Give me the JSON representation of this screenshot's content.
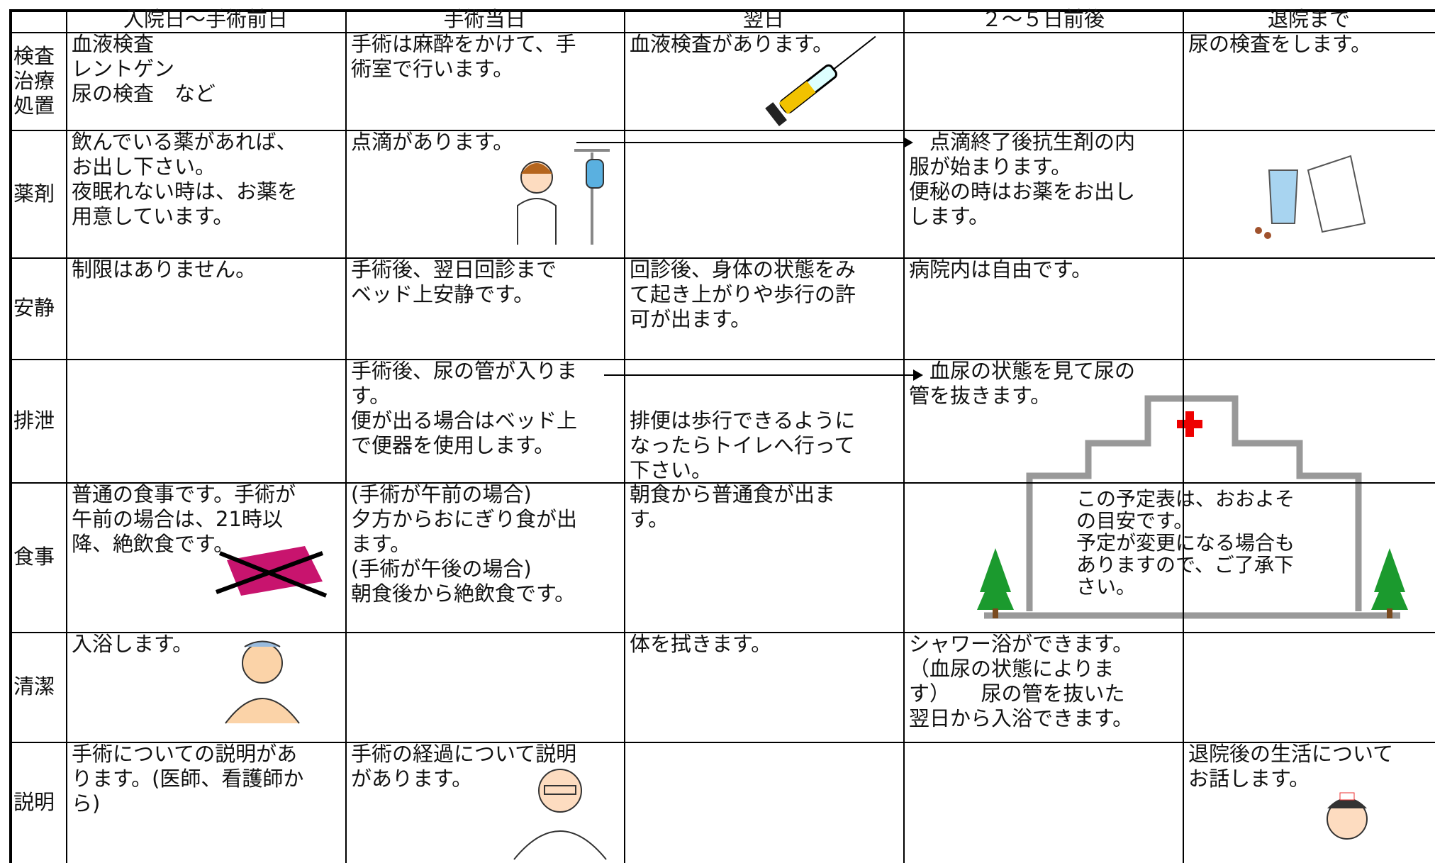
{
  "table": {
    "header": [
      "入院日～手術前日",
      "手術当日",
      "翌日",
      "２～５日前後",
      "退院まで"
    ],
    "rows": [
      {
        "label": "検査\n治療\n処置",
        "cells": [
          "血液検査\nレントゲン\n尿の検査　など",
          "手術は麻酔をかけて、手\n術室で行います。",
          "血液検査があります。",
          null,
          "尿の検査をします。"
        ]
      },
      {
        "label": "薬剤",
        "cells": [
          "飲んでいる薬があれば、\nお出し下さい。\n夜眠れない時は、お薬を\n用意しています。",
          "点滴があります。",
          null,
          "　点滴終了後抗生剤の内\n服が始まります。\n便秘の時はお薬をお出し\nします。",
          null
        ]
      },
      {
        "label": "安静",
        "cells": [
          "制限はありません。",
          "手術後、翌日回診まで\nベッド上安静です。",
          "回診後、身体の状態をみ\nて起き上がりや歩行の許\n可が出ます。",
          "病院内は自由です。",
          null
        ]
      },
      {
        "label": "排泄",
        "cells": [
          null,
          "手術後、尿の管が入りま\nす。\n便が出る場合はベッド上\nで便器を使用します。",
          "排便は歩行できるように\nなったらトイレへ行って\n下さい。",
          "　血尿の状態を見て尿の\n管を抜きます。",
          null
        ]
      },
      {
        "label": "食事",
        "cells": [
          "普通の食事です。手術が\n午前の場合は、21時以\n降、絶飲食です。",
          "(手術が午前の場合)\n夕方からおにぎり食が出\nます。\n(手術が午後の場合)\n朝食後から絶飲食です。",
          "朝食から普通食が出ま\nす。",
          null,
          null
        ]
      },
      {
        "label": "清潔",
        "cells": [
          "入浴します。",
          null,
          "体を拭きます。",
          "シャワー浴ができます。\n（血尿の状態によりま\nす）　　尿の管を抜いた\n翌日から入浴できます。",
          null
        ]
      },
      {
        "label": "説明",
        "cells": [
          "手術についての説明があ\nります。(医師、看護師か\nら)",
          "手術の経過について説明\nがあります。",
          null,
          null,
          "退院後の生活について\nお話します。"
        ]
      }
    ]
  },
  "note": "この予定表は、おおよそ\nの目安です。\n予定が変更になる場合も\nありますので、ご了承下\nさい。"
}
